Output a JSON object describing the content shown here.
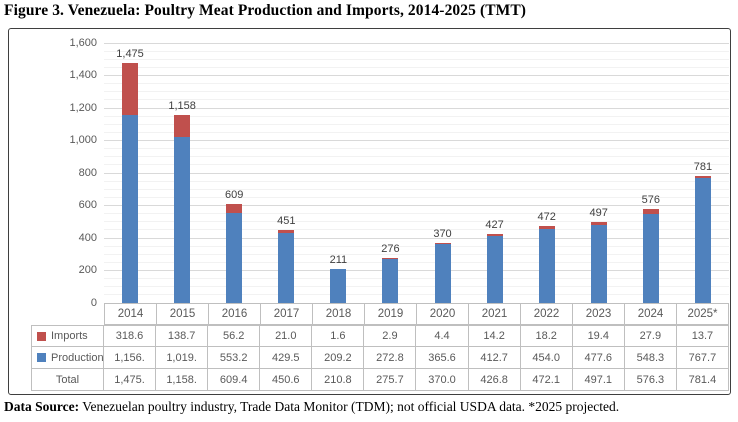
{
  "title": "Figure 3. Venezuela: Poultry Meat Production and Imports, 2014-2025 (TMT)",
  "footer": {
    "label": "Data Source:",
    "text": " Venezuelan poultry industry, Trade Data Monitor (TDM); not official USDA data. *2025 projected."
  },
  "colors": {
    "production": "#4F81BD",
    "imports": "#C0504D",
    "axis_text": "#595959",
    "data_label_text": "#404040",
    "major_gridline": "#D9D9D9",
    "minor_gridline": "#F2F2F2",
    "table_border": "#BFBFBF",
    "frame_border": "#3F3F3F"
  },
  "chart_data": {
    "type": "bar",
    "stacked": true,
    "title": "Figure 3. Venezuela: Poultry Meat Production and Imports, 2014-2025 (TMT)",
    "xlabel": "",
    "ylabel": "",
    "categories": [
      "2014",
      "2015",
      "2016",
      "2017",
      "2018",
      "2019",
      "2020",
      "2021",
      "2022",
      "2023",
      "2024",
      "2025*"
    ],
    "series": [
      {
        "name": "Production",
        "color": "#4F81BD",
        "values": [
          1156.4,
          1019.3,
          553.2,
          429.5,
          209.2,
          272.8,
          365.6,
          412.7,
          454.0,
          477.6,
          548.3,
          767.7
        ]
      },
      {
        "name": "Imports",
        "color": "#C0504D",
        "values": [
          318.6,
          138.7,
          56.2,
          21.0,
          1.6,
          2.9,
          4.4,
          14.2,
          18.2,
          19.4,
          27.9,
          13.7
        ]
      }
    ],
    "totals": [
      1475.0,
      1158.0,
      609.4,
      450.6,
      210.8,
      275.7,
      370.0,
      426.8,
      472.1,
      497.1,
      576.3,
      781.4
    ],
    "bar_labels": [
      "1,475",
      "1,158",
      "609",
      "451",
      "211",
      "276",
      "370",
      "427",
      "472",
      "497",
      "576",
      "781"
    ],
    "ylim": [
      0,
      1600
    ],
    "ytick_interval": 200,
    "yticks": [
      "0",
      "200",
      "400",
      "600",
      "800",
      "1,000",
      "1,200",
      "1,400",
      "1,600"
    ],
    "minor_gridline_interval": 50,
    "grid": true,
    "legend_position": "table-left"
  },
  "table": {
    "rows": [
      {
        "key_color": "#C0504D",
        "label": "Imports",
        "values": [
          "318.6",
          "138.7",
          "56.2",
          "21.0",
          "1.6",
          "2.9",
          "4.4",
          "14.2",
          "18.2",
          "19.4",
          "27.9",
          "13.7"
        ]
      },
      {
        "key_color": "#4F81BD",
        "label": "Production",
        "values": [
          "1,156.",
          "1,019.",
          "553.2",
          "429.5",
          "209.2",
          "272.8",
          "365.6",
          "412.7",
          "454.0",
          "477.6",
          "548.3",
          "767.7"
        ]
      },
      {
        "key_color": null,
        "label": "Total",
        "values": [
          "1,475.",
          "1,158.",
          "609.4",
          "450.6",
          "210.8",
          "275.7",
          "370.0",
          "426.8",
          "472.1",
          "497.1",
          "576.3",
          "781.4"
        ]
      }
    ]
  }
}
